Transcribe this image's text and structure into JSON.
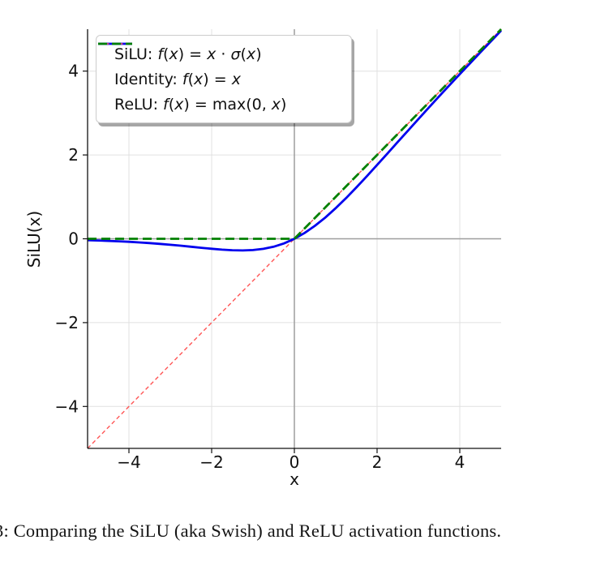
{
  "figure": {
    "caption": "3: Comparing the SiLU (aka Swish) and ReLU activation functions."
  },
  "colors": {
    "grid": "#e0e0e0",
    "zero_line": "#9e9e9e",
    "spine": "#111111",
    "silu": "#0000ee",
    "identity": "#ff5555",
    "relu": "#008000",
    "legend_border": "#cccccc",
    "legend_bg": "#ffffff"
  },
  "chart_data": {
    "type": "line",
    "title": "",
    "xlabel": "x",
    "ylabel": "SiLU(x)",
    "xlim": [
      -5,
      5
    ],
    "ylim": [
      -5,
      5
    ],
    "xticks": [
      -4,
      -2,
      0,
      2,
      4
    ],
    "yticks": [
      -4,
      -2,
      0,
      2,
      4
    ],
    "grid": true,
    "zero_lines": true,
    "legend_position": "upper left",
    "series": [
      {
        "name": "SiLU",
        "color": "#0000ee",
        "width": 2.8,
        "dash": "",
        "z": 2,
        "x": [
          -5,
          -4.75,
          -4.5,
          -4.25,
          -4,
          -3.75,
          -3.5,
          -3.25,
          -3,
          -2.75,
          -2.5,
          -2.25,
          -2,
          -1.75,
          -1.5,
          -1.25,
          -1,
          -0.75,
          -0.5,
          -0.25,
          0,
          0.25,
          0.5,
          0.75,
          1,
          1.25,
          1.5,
          1.75,
          2,
          2.25,
          2.5,
          2.75,
          3,
          3.25,
          3.5,
          3.75,
          4,
          4.25,
          4.5,
          4.75,
          5
        ],
        "y": [
          -0.0335,
          -0.0407,
          -0.0494,
          -0.0598,
          -0.0719,
          -0.0862,
          -0.1026,
          -0.1213,
          -0.1423,
          -0.1652,
          -0.1897,
          -0.2145,
          -0.2384,
          -0.2591,
          -0.2736,
          -0.2784,
          -0.2689,
          -0.2407,
          -0.1888,
          -0.1095,
          0,
          0.1406,
          0.3112,
          0.5094,
          0.7311,
          0.9716,
          1.2264,
          1.4909,
          1.7616,
          2.0355,
          2.3103,
          2.5847,
          2.8577,
          3.1287,
          3.3975,
          3.6637,
          3.928,
          4.1901,
          4.4505,
          4.7093,
          4.9665
        ]
      },
      {
        "name": "Identity",
        "color": "#ff5555",
        "width": 1.4,
        "dash": "5 3.5",
        "z": 1,
        "x": [
          -5,
          5
        ],
        "y": [
          -5,
          5
        ]
      },
      {
        "name": "ReLU",
        "color": "#008000",
        "width": 2.8,
        "dash": "11 6",
        "z": 3,
        "x": [
          -5,
          0,
          5
        ],
        "y": [
          0,
          0,
          5
        ]
      }
    ],
    "legend": [
      {
        "id": "silu",
        "series": 0,
        "runs": [
          {
            "t": "SiLU: ",
            "i": false
          },
          {
            "t": "f",
            "i": true
          },
          {
            "t": "(",
            "i": false
          },
          {
            "t": "x",
            "i": true
          },
          {
            "t": ") = ",
            "i": false
          },
          {
            "t": "x",
            "i": true
          },
          {
            "t": " ⋅ ",
            "i": false
          },
          {
            "t": "σ",
            "i": true
          },
          {
            "t": "(",
            "i": false
          },
          {
            "t": "x",
            "i": true
          },
          {
            "t": ")",
            "i": false
          }
        ]
      },
      {
        "id": "identity",
        "series": 1,
        "runs": [
          {
            "t": "Identity: ",
            "i": false
          },
          {
            "t": "f",
            "i": true
          },
          {
            "t": "(",
            "i": false
          },
          {
            "t": "x",
            "i": true
          },
          {
            "t": ") = ",
            "i": false
          },
          {
            "t": "x",
            "i": true
          }
        ]
      },
      {
        "id": "relu",
        "series": 2,
        "runs": [
          {
            "t": "ReLU: ",
            "i": false
          },
          {
            "t": "f",
            "i": true
          },
          {
            "t": "(",
            "i": false
          },
          {
            "t": "x",
            "i": true
          },
          {
            "t": ") = max(0, ",
            "i": false
          },
          {
            "t": "x",
            "i": true
          },
          {
            "t": ")",
            "i": false
          }
        ]
      }
    ]
  }
}
